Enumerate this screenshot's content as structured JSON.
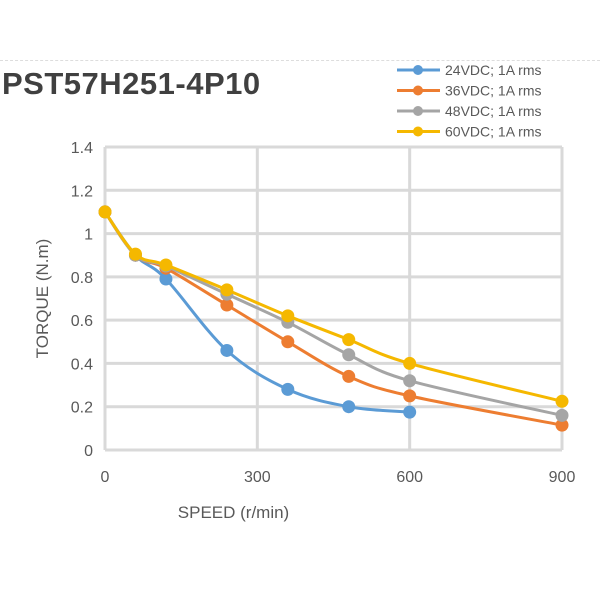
{
  "chart_data": {
    "type": "line",
    "title": "PST57H251-4P10",
    "xlabel": "SPEED (r/min)",
    "ylabel": "TORQUE (N.m)",
    "xlim": [
      0,
      900
    ],
    "ylim": [
      0,
      1.4
    ],
    "xticks": [
      0,
      300,
      600,
      900
    ],
    "yticks": [
      0,
      0.2,
      0.4,
      0.6,
      0.8,
      1,
      1.2,
      1.4
    ],
    "ytick_labels": [
      "0",
      "0.2",
      "0.4",
      "0.6",
      "0.8",
      "1",
      "1.2",
      "1.4"
    ],
    "grid": true,
    "legend_position": "top-right",
    "series": [
      {
        "name": "24VDC; 1A rms",
        "color": "#5b9bd5",
        "x": [
          0,
          60,
          120,
          240,
          360,
          480,
          600
        ],
        "y": [
          1.1,
          0.9,
          0.79,
          0.46,
          0.28,
          0.2,
          0.175
        ]
      },
      {
        "name": "36VDC; 1A rms",
        "color": "#ed7d31",
        "x": [
          0,
          60,
          120,
          240,
          360,
          480,
          600,
          900
        ],
        "y": [
          1.1,
          0.9,
          0.84,
          0.67,
          0.5,
          0.34,
          0.25,
          0.115
        ]
      },
      {
        "name": "48VDC; 1A rms",
        "color": "#a5a5a5",
        "x": [
          0,
          60,
          120,
          240,
          360,
          480,
          600,
          900
        ],
        "y": [
          1.1,
          0.9,
          0.85,
          0.72,
          0.59,
          0.44,
          0.32,
          0.16
        ]
      },
      {
        "name": "60VDC; 1A rms",
        "color": "#f5b800",
        "x": [
          0,
          60,
          120,
          240,
          360,
          480,
          600,
          900
        ],
        "y": [
          1.1,
          0.905,
          0.855,
          0.74,
          0.62,
          0.51,
          0.4,
          0.225
        ]
      }
    ]
  }
}
